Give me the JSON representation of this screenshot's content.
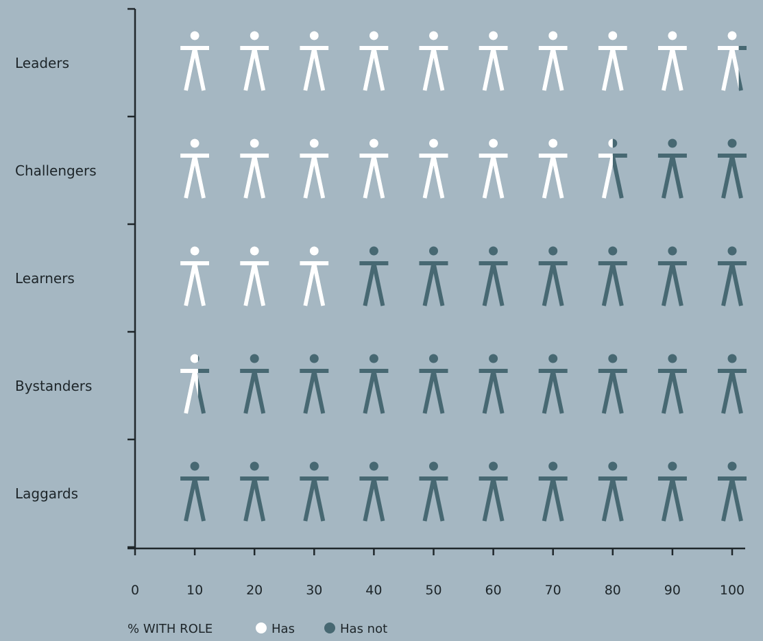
{
  "chart_data": {
    "type": "pictogram",
    "categories": [
      "Leaders",
      "Challengers",
      "Learners",
      "Bystanders",
      "Laggards"
    ],
    "values": [
      97,
      75,
      30,
      6,
      0
    ],
    "xlim": [
      0,
      100
    ],
    "x_ticks": [
      "0",
      "10",
      "20",
      "30",
      "40",
      "50",
      "60",
      "70",
      "80",
      "90",
      "100"
    ],
    "xlabel": "% WITH ROLE",
    "grid": false,
    "legend": {
      "position": "bottom-left",
      "items": [
        {
          "label": "Has",
          "color": "#ffffff"
        },
        {
          "label": "Has not",
          "color": "#476872"
        }
      ]
    }
  },
  "colors": {
    "background": "#a5b7c2",
    "has": "#ffffff",
    "has_not": "#476872",
    "axis": "#1f272b"
  },
  "icon": "person-icon"
}
